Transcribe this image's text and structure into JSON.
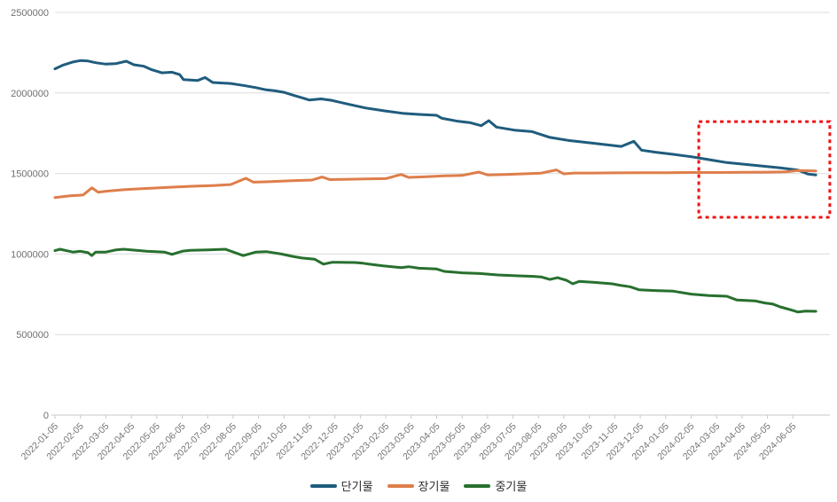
{
  "chart_data": {
    "type": "line",
    "grid": "horizontal",
    "legend_position": "bottom-center",
    "t_unit": "t = months since first tick (0 = 2022-01-05, 29 = 2024-06-05); underlying data is sub-monthly",
    "x_axis": {
      "labels": [
        "2022-01-05",
        "2022-02-05",
        "2022-03-05",
        "2022-04-05",
        "2022-05-05",
        "2022-06-05",
        "2022-07-05",
        "2022-08-05",
        "2022-09-05",
        "2022-10-05",
        "2022-11-05",
        "2022-12-05",
        "2023-01-05",
        "2023-02-05",
        "2023-03-05",
        "2023-04-05",
        "2023-05-05",
        "2023-06-05",
        "2023-07-05",
        "2023-08-05",
        "2023-09-05",
        "2023-10-05",
        "2023-11-05",
        "2023-12-05",
        "2024-01-05",
        "2024-02-05",
        "2024-03-05",
        "2024-04-05",
        "2024-05-05",
        "2024-06-05"
      ]
    },
    "y_axis": {
      "ticks": [
        0,
        500000,
        1000000,
        1500000,
        2000000,
        2500000
      ],
      "range": [
        0,
        2500000
      ]
    },
    "series": [
      {
        "name": "단기물",
        "color": "#1f5c7d",
        "points": [
          [
            0,
            2150000
          ],
          [
            0.3,
            2172000
          ],
          [
            0.7,
            2192000
          ],
          [
            1,
            2201000
          ],
          [
            1.3,
            2198000
          ],
          [
            1.6,
            2188000
          ],
          [
            2,
            2179000
          ],
          [
            2.4,
            2182000
          ],
          [
            2.8,
            2197000
          ],
          [
            3.1,
            2175000
          ],
          [
            3.5,
            2166000
          ],
          [
            3.8,
            2144000
          ],
          [
            4.2,
            2125000
          ],
          [
            4.6,
            2129000
          ],
          [
            4.9,
            2114000
          ],
          [
            5.05,
            2083000
          ],
          [
            5.6,
            2077000
          ],
          [
            5.9,
            2096000
          ],
          [
            6.2,
            2065000
          ],
          [
            6.9,
            2059000
          ],
          [
            7.4,
            2047000
          ],
          [
            7.9,
            2033000
          ],
          [
            8.3,
            2019000
          ],
          [
            8.65,
            2013000
          ],
          [
            9,
            2004000
          ],
          [
            9.4,
            1984000
          ],
          [
            9.7,
            1970000
          ],
          [
            10,
            1956000
          ],
          [
            10.45,
            1963000
          ],
          [
            10.85,
            1955000
          ],
          [
            11.5,
            1931000
          ],
          [
            12.2,
            1907000
          ],
          [
            12.95,
            1889000
          ],
          [
            13.65,
            1874000
          ],
          [
            14.3,
            1867000
          ],
          [
            15,
            1861000
          ],
          [
            15.2,
            1843000
          ],
          [
            15.85,
            1824000
          ],
          [
            16.3,
            1816000
          ],
          [
            16.75,
            1797000
          ],
          [
            17.05,
            1828000
          ],
          [
            17.35,
            1788000
          ],
          [
            18.05,
            1769000
          ],
          [
            18.75,
            1760000
          ],
          [
            19.45,
            1724000
          ],
          [
            20.15,
            1706000
          ],
          [
            21.2,
            1687000
          ],
          [
            22.25,
            1668000
          ],
          [
            22.75,
            1700000
          ],
          [
            23.05,
            1645000
          ],
          [
            23.6,
            1632000
          ],
          [
            24.3,
            1619000
          ],
          [
            25,
            1604000
          ],
          [
            25.7,
            1586000
          ],
          [
            26.4,
            1568000
          ],
          [
            27.1,
            1557000
          ],
          [
            27.8,
            1546000
          ],
          [
            28.5,
            1535000
          ],
          [
            29.2,
            1521000
          ],
          [
            29.6,
            1496000
          ],
          [
            29.9,
            1491000
          ]
        ]
      },
      {
        "name": "장기물",
        "color": "#de7e4b",
        "points": [
          [
            0,
            1351000
          ],
          [
            0.6,
            1362000
          ],
          [
            1.1,
            1366000
          ],
          [
            1.45,
            1411000
          ],
          [
            1.7,
            1384000
          ],
          [
            2,
            1390000
          ],
          [
            2.7,
            1399000
          ],
          [
            3.4,
            1406000
          ],
          [
            4.1,
            1411000
          ],
          [
            4.8,
            1417000
          ],
          [
            5.5,
            1421000
          ],
          [
            6.2,
            1425000
          ],
          [
            6.9,
            1431000
          ],
          [
            7.5,
            1470000
          ],
          [
            7.8,
            1446000
          ],
          [
            8.4,
            1449000
          ],
          [
            9.3,
            1455000
          ],
          [
            10.1,
            1459000
          ],
          [
            10.5,
            1478000
          ],
          [
            10.8,
            1462000
          ],
          [
            11.5,
            1464000
          ],
          [
            12.2,
            1466000
          ],
          [
            13,
            1468000
          ],
          [
            13.6,
            1494000
          ],
          [
            13.9,
            1476000
          ],
          [
            14.6,
            1480000
          ],
          [
            15.3,
            1485000
          ],
          [
            16,
            1488000
          ],
          [
            16.65,
            1509000
          ],
          [
            17,
            1491000
          ],
          [
            17.7,
            1494000
          ],
          [
            18.4,
            1498000
          ],
          [
            19.1,
            1502000
          ],
          [
            19.7,
            1522000
          ],
          [
            20,
            1498000
          ],
          [
            20.4,
            1503000
          ],
          [
            21.1,
            1503000
          ],
          [
            22,
            1504000
          ],
          [
            23,
            1505000
          ],
          [
            24,
            1505000
          ],
          [
            25,
            1506000
          ],
          [
            26,
            1506000
          ],
          [
            27,
            1507000
          ],
          [
            28,
            1508000
          ],
          [
            28.7,
            1510000
          ],
          [
            29.2,
            1518000
          ],
          [
            29.9,
            1516000
          ]
        ]
      },
      {
        "name": "중기물",
        "color": "#27702e",
        "points": [
          [
            0,
            1021000
          ],
          [
            0.2,
            1030000
          ],
          [
            0.7,
            1012000
          ],
          [
            1,
            1017000
          ],
          [
            1.3,
            1008000
          ],
          [
            1.45,
            990000
          ],
          [
            1.6,
            1012000
          ],
          [
            2,
            1012000
          ],
          [
            2.4,
            1026000
          ],
          [
            2.7,
            1030000
          ],
          [
            3.2,
            1023000
          ],
          [
            3.6,
            1017000
          ],
          [
            4.3,
            1012000
          ],
          [
            4.6,
            998000
          ],
          [
            5,
            1017000
          ],
          [
            5.3,
            1023000
          ],
          [
            6,
            1026000
          ],
          [
            6.7,
            1030000
          ],
          [
            7.4,
            990000
          ],
          [
            7.9,
            1012000
          ],
          [
            8.3,
            1015000
          ],
          [
            8.9,
            1000000
          ],
          [
            9.3,
            986000
          ],
          [
            9.7,
            975000
          ],
          [
            10.2,
            968000
          ],
          [
            10.55,
            937000
          ],
          [
            10.9,
            949000
          ],
          [
            11.8,
            947000
          ],
          [
            12.1,
            943000
          ],
          [
            12.5,
            934000
          ],
          [
            12.9,
            926000
          ],
          [
            13.6,
            916000
          ],
          [
            13.9,
            921000
          ],
          [
            14.3,
            912000
          ],
          [
            15,
            907000
          ],
          [
            15.3,
            892000
          ],
          [
            16,
            883000
          ],
          [
            16.7,
            879000
          ],
          [
            17.4,
            870000
          ],
          [
            18.1,
            865000
          ],
          [
            18.8,
            861000
          ],
          [
            19.1,
            858000
          ],
          [
            19.45,
            842000
          ],
          [
            19.75,
            853000
          ],
          [
            20.1,
            837000
          ],
          [
            20.35,
            815000
          ],
          [
            20.6,
            830000
          ],
          [
            21.2,
            824000
          ],
          [
            21.9,
            815000
          ],
          [
            22.2,
            806000
          ],
          [
            22.6,
            797000
          ],
          [
            22.95,
            778000
          ],
          [
            23.6,
            773000
          ],
          [
            24.3,
            769000
          ],
          [
            25,
            751000
          ],
          [
            25.7,
            742000
          ],
          [
            26.4,
            738000
          ],
          [
            26.8,
            714000
          ],
          [
            27.5,
            709000
          ],
          [
            27.9,
            696000
          ],
          [
            28.2,
            690000
          ],
          [
            28.5,
            672000
          ],
          [
            28.9,
            654000
          ],
          [
            29.2,
            640000
          ],
          [
            29.5,
            646000
          ],
          [
            29.9,
            644000
          ]
        ]
      }
    ],
    "annotation_box": {
      "description": "red dashed highlight over the recent months where 단기물 converges with and crosses below 장기물",
      "color": "#ee1414",
      "t_start": 25.3,
      "t_end": 30.45,
      "value_top": 1822000,
      "value_bottom": 1228000
    }
  }
}
